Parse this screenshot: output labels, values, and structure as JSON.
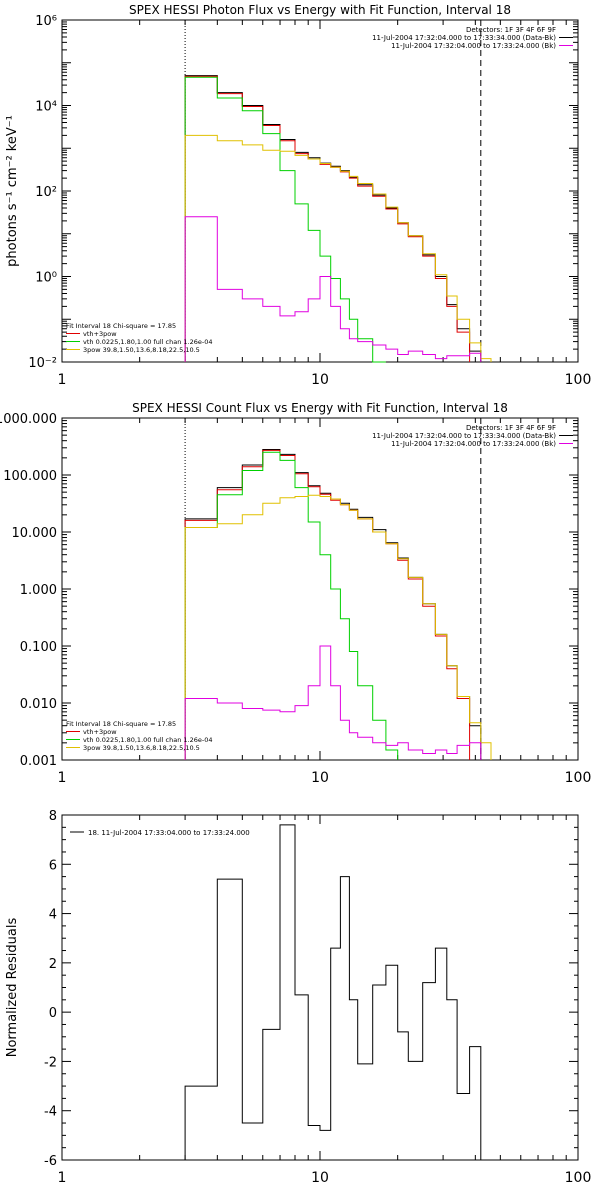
{
  "colors": {
    "black": "#000000",
    "red": "#e00000",
    "green": "#00d000",
    "yellow": "#e0c000",
    "magenta": "#e000e0"
  },
  "chart_data": [
    {
      "type": "line",
      "title": "SPEX HESSI Photon Flux vs Energy with Fit Function, Interval 18",
      "ylabel": "photons s⁻¹ cm⁻² keV⁻¹",
      "xlabel": "",
      "xscale": "log",
      "yscale": "log",
      "xlim": [
        1,
        100
      ],
      "ylim": [
        0.01,
        1000000
      ],
      "xticks": [
        {
          "v": 1,
          "label": "1"
        },
        {
          "v": 10,
          "label": "10"
        },
        {
          "v": 100,
          "label": "100"
        }
      ],
      "yticks": [
        {
          "v": 0.01,
          "label": "10⁻²"
        },
        {
          "v": 1,
          "label": "10⁰"
        },
        {
          "v": 100,
          "label": "10²"
        },
        {
          "v": 10000,
          "label": "10⁴"
        },
        {
          "v": 1000000,
          "label": "10⁶"
        }
      ],
      "vlines": [
        {
          "x": 3,
          "style": "dotted"
        },
        {
          "x": 42,
          "style": "dashed"
        }
      ],
      "legend_top": [
        {
          "text": "Detectors: 1F 3F 4F 6F 9F",
          "color": ""
        },
        {
          "text": "11-Jul-2004 17:32:04.000 to 17:33:34.000 (Data-Bk)",
          "color": "#000000"
        },
        {
          "text": "11-Jul-2004 17:32:04.000 to 17:33:24.000 (Bk)",
          "color": "#e000e0"
        }
      ],
      "legend_bottom": [
        {
          "text": "Fit Interval 18   Chi-square = 17.85",
          "color": ""
        },
        {
          "text": "vth+3pow",
          "color": "#e00000"
        },
        {
          "text": "vth 0.0225,1.80,1.00  full chan 1.26e-04",
          "color": "#00d000"
        },
        {
          "text": "3pow 39.8,1.50,13.6,8.18,22.5,10.5",
          "color": "#e0c000"
        }
      ],
      "edges": [
        3,
        4,
        5,
        6,
        7,
        8,
        9,
        10,
        11,
        12,
        13,
        14,
        16,
        18,
        20,
        22,
        25,
        28,
        31,
        34,
        38,
        42,
        46,
        50
      ],
      "series": [
        {
          "name": "Data-Bk",
          "color": "#000000",
          "values": [
            50000,
            20000,
            10000,
            3600,
            1600,
            800,
            600,
            450,
            380,
            300,
            210,
            140,
            80,
            40,
            18,
            9,
            3.2,
            1.0,
            0.22,
            0.06,
            0.018,
            null,
            null
          ]
        },
        {
          "name": "vth+3pow",
          "color": "#e00000",
          "values": [
            48000,
            19000,
            9500,
            3400,
            1500,
            750,
            560,
            420,
            360,
            280,
            200,
            130,
            75,
            38,
            17,
            8.5,
            3.0,
            0.9,
            0.2,
            0.05,
            null,
            null,
            null
          ]
        },
        {
          "name": "vth",
          "color": "#00d000",
          "values": [
            46000,
            15000,
            7500,
            2200,
            300,
            50,
            12,
            3.0,
            0.9,
            0.3,
            0.1,
            0.035,
            0.01,
            null,
            null,
            null,
            null,
            null,
            null,
            null,
            null,
            null,
            null
          ]
        },
        {
          "name": "3pow",
          "color": "#e0c000",
          "values": [
            2000,
            1500,
            1200,
            900,
            850,
            680,
            560,
            440,
            360,
            290,
            220,
            150,
            85,
            42,
            18,
            9,
            3.4,
            1.1,
            0.35,
            0.1,
            0.028,
            0.012,
            null
          ]
        },
        {
          "name": "Bk",
          "color": "#e000e0",
          "values": [
            25,
            0.5,
            0.3,
            0.2,
            0.12,
            0.15,
            0.3,
            1.0,
            0.2,
            0.06,
            0.035,
            0.03,
            0.025,
            0.02,
            0.015,
            0.018,
            0.015,
            0.012,
            0.014,
            0.014,
            0.016,
            null,
            null
          ]
        }
      ]
    },
    {
      "type": "line",
      "title": "SPEX HESSI Count Flux vs Energy with Fit Function, Interval 18",
      "ylabel": "",
      "xlabel": "",
      "xscale": "log",
      "yscale": "log",
      "xlim": [
        1,
        100
      ],
      "ylim": [
        0.001,
        1000
      ],
      "xticks": [
        {
          "v": 1,
          "label": "1"
        },
        {
          "v": 10,
          "label": "10"
        },
        {
          "v": 100,
          "label": "100"
        }
      ],
      "yticks": [
        {
          "v": 0.001,
          "label": "0.001"
        },
        {
          "v": 0.01,
          "label": "0.010"
        },
        {
          "v": 0.1,
          "label": "0.100"
        },
        {
          "v": 1,
          "label": "1.000"
        },
        {
          "v": 10,
          "label": "10.000"
        },
        {
          "v": 100,
          "label": "100.000"
        },
        {
          "v": 1000,
          "label": "1000.000"
        }
      ],
      "vlines": [
        {
          "x": 3,
          "style": "dotted"
        },
        {
          "x": 42,
          "style": "dashed"
        }
      ],
      "legend_top": [
        {
          "text": "Detectors: 1F 3F 4F 6F 9F",
          "color": ""
        },
        {
          "text": "11-Jul-2004 17:32:04.000 to 17:33:34.000 (Data-Bk)",
          "color": "#000000"
        },
        {
          "text": "11-Jul-2004 17:32:04.000 to 17:33:24.000 (Bk)",
          "color": "#e000e0"
        }
      ],
      "legend_bottom": [
        {
          "text": "Fit Interval 18   Chi-square = 17.85",
          "color": ""
        },
        {
          "text": "vth+3pow",
          "color": "#e00000"
        },
        {
          "text": "vth 0.0225,1.80,1.00  full chan 1.26e-04",
          "color": "#00d000"
        },
        {
          "text": "3pow 39.8,1.50,13.6,8.18,22.5,10.5",
          "color": "#e0c000"
        }
      ],
      "edges": [
        3,
        4,
        5,
        6,
        7,
        8,
        9,
        10,
        11,
        12,
        13,
        14,
        16,
        18,
        20,
        22,
        25,
        28,
        31,
        34,
        38,
        42,
        46,
        50
      ],
      "series": [
        {
          "name": "Data-Bk",
          "color": "#000000",
          "values": [
            17,
            60,
            150,
            280,
            230,
            110,
            65,
            48,
            38,
            32,
            25,
            18,
            11,
            6.5,
            3.5,
            1.6,
            0.55,
            0.16,
            0.045,
            0.013,
            0.004,
            null,
            null
          ]
        },
        {
          "name": "vth+3pow",
          "color": "#e00000",
          "values": [
            16,
            55,
            140,
            270,
            220,
            105,
            62,
            46,
            36,
            30,
            24,
            17,
            10,
            6.2,
            3.2,
            1.5,
            0.5,
            0.15,
            0.04,
            0.012,
            null,
            null,
            null
          ]
        },
        {
          "name": "vth",
          "color": "#00d000",
          "values": [
            12,
            45,
            120,
            250,
            180,
            60,
            15,
            4.0,
            1.0,
            0.3,
            0.08,
            0.02,
            0.005,
            0.0015,
            null,
            null,
            null,
            null,
            null,
            null,
            null,
            null,
            null
          ]
        },
        {
          "name": "3pow",
          "color": "#e0c000",
          "values": [
            12,
            14,
            20,
            32,
            40,
            42,
            44,
            42,
            38,
            30,
            24,
            17,
            10,
            6.2,
            3.4,
            1.6,
            0.55,
            0.16,
            0.045,
            0.013,
            0.0045,
            0.002,
            null
          ]
        },
        {
          "name": "Bk",
          "color": "#e000e0",
          "values": [
            0.012,
            0.01,
            0.008,
            0.0075,
            0.007,
            0.009,
            0.02,
            0.1,
            0.02,
            0.005,
            0.003,
            0.0025,
            0.002,
            0.0018,
            0.002,
            0.0015,
            0.0013,
            0.0015,
            0.0013,
            0.0018,
            0.002,
            null,
            null
          ]
        }
      ]
    },
    {
      "type": "line",
      "title": "",
      "ylabel": "Normalized Residuals",
      "xlabel": "",
      "xscale": "log",
      "yscale": "linear",
      "xlim": [
        1,
        100
      ],
      "ylim": [
        -6,
        8
      ],
      "xticks": [
        {
          "v": 1,
          "label": "1"
        },
        {
          "v": 10,
          "label": "10"
        },
        {
          "v": 100,
          "label": "100"
        }
      ],
      "yticks": [
        {
          "v": -6,
          "label": "-6"
        },
        {
          "v": -4,
          "label": "-4"
        },
        {
          "v": -2,
          "label": "-2"
        },
        {
          "v": 0,
          "label": "0"
        },
        {
          "v": 2,
          "label": "2"
        },
        {
          "v": 4,
          "label": "4"
        },
        {
          "v": 6,
          "label": "6"
        },
        {
          "v": 8,
          "label": "8"
        }
      ],
      "legend_top": [
        {
          "text": "18. 11-Jul-2004 17:33:04.000 to 17:33:24.000",
          "color": "#000000"
        }
      ],
      "edges": [
        3,
        4,
        5,
        6,
        7,
        8,
        9,
        10,
        11,
        12,
        13,
        14,
        16,
        18,
        20,
        22,
        25,
        28,
        31,
        34,
        38,
        42
      ],
      "series": [
        {
          "name": "residuals",
          "color": "#000000",
          "values": [
            -3.0,
            5.4,
            -4.5,
            -0.7,
            7.6,
            0.7,
            -4.6,
            -4.8,
            2.6,
            5.5,
            0.5,
            -2.1,
            1.1,
            1.9,
            -0.8,
            -2.0,
            1.2,
            2.6,
            0.5,
            -3.3,
            -1.4
          ]
        }
      ]
    }
  ]
}
